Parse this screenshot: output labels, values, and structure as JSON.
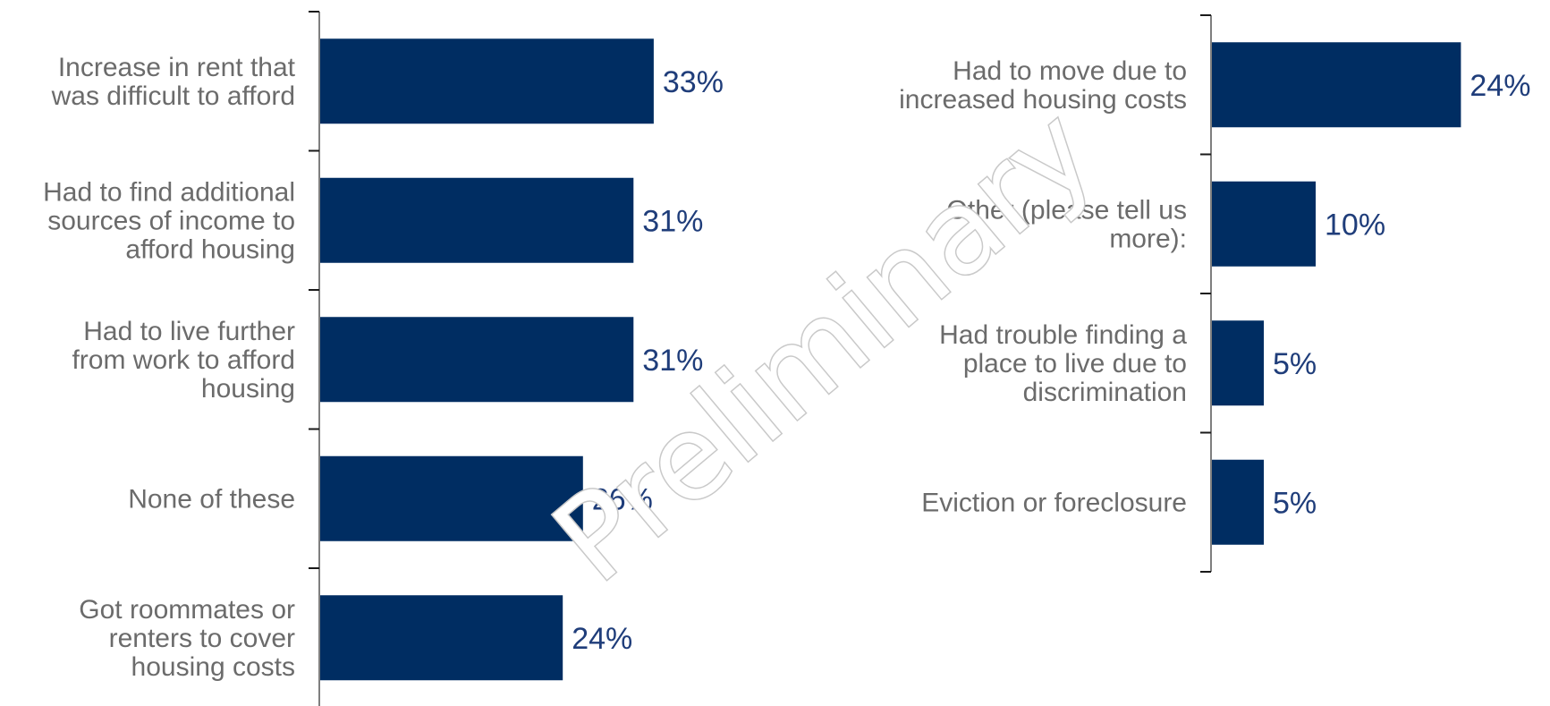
{
  "watermark": "Preliminary",
  "colors": {
    "bar": "#002d62",
    "value_label": "#1f3d7a",
    "category_label": "#6b6b6b"
  },
  "chart_data": [
    {
      "type": "bar",
      "orientation": "horizontal",
      "categories": [
        [
          "Increase in rent that",
          "was difficult to afford"
        ],
        [
          "Had to find additional",
          "sources of income to",
          "afford housing"
        ],
        [
          "Had to live further",
          "from work to afford",
          "housing"
        ],
        [
          "None of these"
        ],
        [
          "Got roommates or",
          "renters to cover",
          "housing costs"
        ]
      ],
      "values": [
        33,
        31,
        31,
        26,
        24
      ],
      "value_labels": [
        "33%",
        "31%",
        "31%",
        "26%",
        "24%"
      ],
      "title": "",
      "xlabel": "",
      "ylabel": "",
      "xlim": [
        0,
        40
      ],
      "grid": false,
      "legend": "none"
    },
    {
      "type": "bar",
      "orientation": "horizontal",
      "categories": [
        [
          "Had to move due to",
          "increased housing costs"
        ],
        [
          "Other (please tell us",
          "more):"
        ],
        [
          "Had trouble finding a",
          "place to live due to",
          "discrimination"
        ],
        [
          "Eviction or foreclosure"
        ]
      ],
      "values": [
        24,
        10,
        5,
        5
      ],
      "value_labels": [
        "24%",
        "10%",
        "5%",
        "5%"
      ],
      "title": "",
      "xlabel": "",
      "ylabel": "",
      "xlim": [
        0,
        40
      ],
      "grid": false,
      "legend": "none"
    }
  ]
}
